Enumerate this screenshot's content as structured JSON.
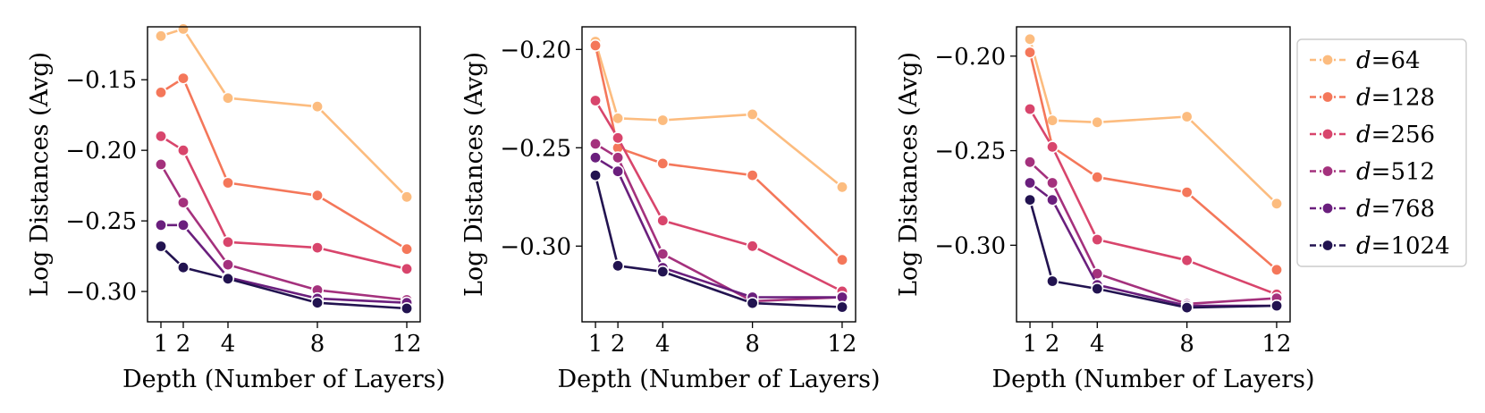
{
  "series_styles": [
    {
      "name": "d=64",
      "var": "d",
      "value": "64",
      "color": "#fcbc7f"
    },
    {
      "name": "d=128",
      "var": "d",
      "value": "128",
      "color": "#f4775a"
    },
    {
      "name": "d=256",
      "var": "d",
      "value": "256",
      "color": "#d8456c"
    },
    {
      "name": "d=512",
      "var": "d",
      "value": "512",
      "color": "#a4317d"
    },
    {
      "name": "d=768",
      "var": "d",
      "value": "768",
      "color": "#6a1f7d"
    },
    {
      "name": "d=1024",
      "var": "d",
      "value": "1024",
      "color": "#221350"
    }
  ],
  "chart_data": [
    {
      "type": "line",
      "xlabel": "Depth (Number of Layers)",
      "ylabel": "Log Distances (Avg)",
      "x": [
        1,
        2,
        4,
        8,
        12
      ],
      "xlim": [
        0.4,
        12.6
      ],
      "ylim": [
        -0.3215,
        -0.1125
      ],
      "xticks": [
        1,
        2,
        4,
        8,
        12
      ],
      "yticks": [
        -0.15,
        -0.2,
        -0.25,
        -0.3
      ],
      "ytick_labels": [
        "−0.15",
        "−0.20",
        "−0.25",
        "−0.30"
      ],
      "series": [
        {
          "name": "d=64",
          "values": [
            -0.119,
            -0.114,
            -0.163,
            -0.169,
            -0.233
          ]
        },
        {
          "name": "d=128",
          "values": [
            -0.159,
            -0.149,
            -0.223,
            -0.232,
            -0.27
          ]
        },
        {
          "name": "d=256",
          "values": [
            -0.19,
            -0.2,
            -0.265,
            -0.269,
            -0.284
          ]
        },
        {
          "name": "d=512",
          "values": [
            -0.21,
            -0.237,
            -0.281,
            -0.299,
            -0.306
          ]
        },
        {
          "name": "d=768",
          "values": [
            -0.253,
            -0.253,
            -0.29,
            -0.305,
            -0.308
          ]
        },
        {
          "name": "d=1024",
          "values": [
            -0.268,
            -0.283,
            -0.291,
            -0.308,
            -0.312
          ]
        }
      ]
    },
    {
      "type": "line",
      "xlabel": "Depth (Number of Layers)",
      "ylabel": "Log Distances (Avg)",
      "x": [
        1,
        2,
        4,
        8,
        12
      ],
      "xlim": [
        0.4,
        12.6
      ],
      "ylim": [
        -0.3385,
        -0.1885
      ],
      "xticks": [
        1,
        2,
        4,
        8,
        12
      ],
      "yticks": [
        -0.2,
        -0.25,
        -0.3
      ],
      "ytick_labels": [
        "−0.20",
        "−0.25",
        "−0.30"
      ],
      "series": [
        {
          "name": "d=64",
          "values": [
            -0.196,
            -0.235,
            -0.236,
            -0.233,
            -0.27
          ]
        },
        {
          "name": "d=128",
          "values": [
            -0.198,
            -0.25,
            -0.258,
            -0.264,
            -0.307
          ]
        },
        {
          "name": "d=256",
          "values": [
            -0.226,
            -0.245,
            -0.287,
            -0.3,
            -0.323
          ]
        },
        {
          "name": "d=512",
          "values": [
            -0.248,
            -0.255,
            -0.304,
            -0.328,
            -0.326
          ]
        },
        {
          "name": "d=768",
          "values": [
            -0.255,
            -0.262,
            -0.311,
            -0.326,
            -0.326
          ]
        },
        {
          "name": "d=1024",
          "values": [
            -0.264,
            -0.31,
            -0.313,
            -0.329,
            -0.331
          ]
        }
      ]
    },
    {
      "type": "line",
      "xlabel": "Depth (Number of Layers)",
      "ylabel": "Log Distances (Avg)",
      "x": [
        1,
        2,
        4,
        8,
        12
      ],
      "xlim": [
        0.4,
        12.6
      ],
      "ylim": [
        -0.3405,
        -0.1845
      ],
      "xticks": [
        1,
        2,
        4,
        8,
        12
      ],
      "yticks": [
        -0.2,
        -0.25,
        -0.3
      ],
      "ytick_labels": [
        "−0.20",
        "−0.25",
        "−0.30"
      ],
      "series": [
        {
          "name": "d=64",
          "values": [
            -0.191,
            -0.234,
            -0.235,
            -0.232,
            -0.278
          ]
        },
        {
          "name": "d=128",
          "values": [
            -0.198,
            -0.248,
            -0.264,
            -0.272,
            -0.313
          ]
        },
        {
          "name": "d=256",
          "values": [
            -0.228,
            -0.248,
            -0.297,
            -0.308,
            -0.326
          ]
        },
        {
          "name": "d=512",
          "values": [
            -0.256,
            -0.267,
            -0.315,
            -0.331,
            -0.328
          ]
        },
        {
          "name": "d=768",
          "values": [
            -0.267,
            -0.276,
            -0.321,
            -0.332,
            -0.332
          ]
        },
        {
          "name": "d=1024",
          "values": [
            -0.276,
            -0.319,
            -0.323,
            -0.333,
            -0.332
          ]
        }
      ]
    }
  ]
}
